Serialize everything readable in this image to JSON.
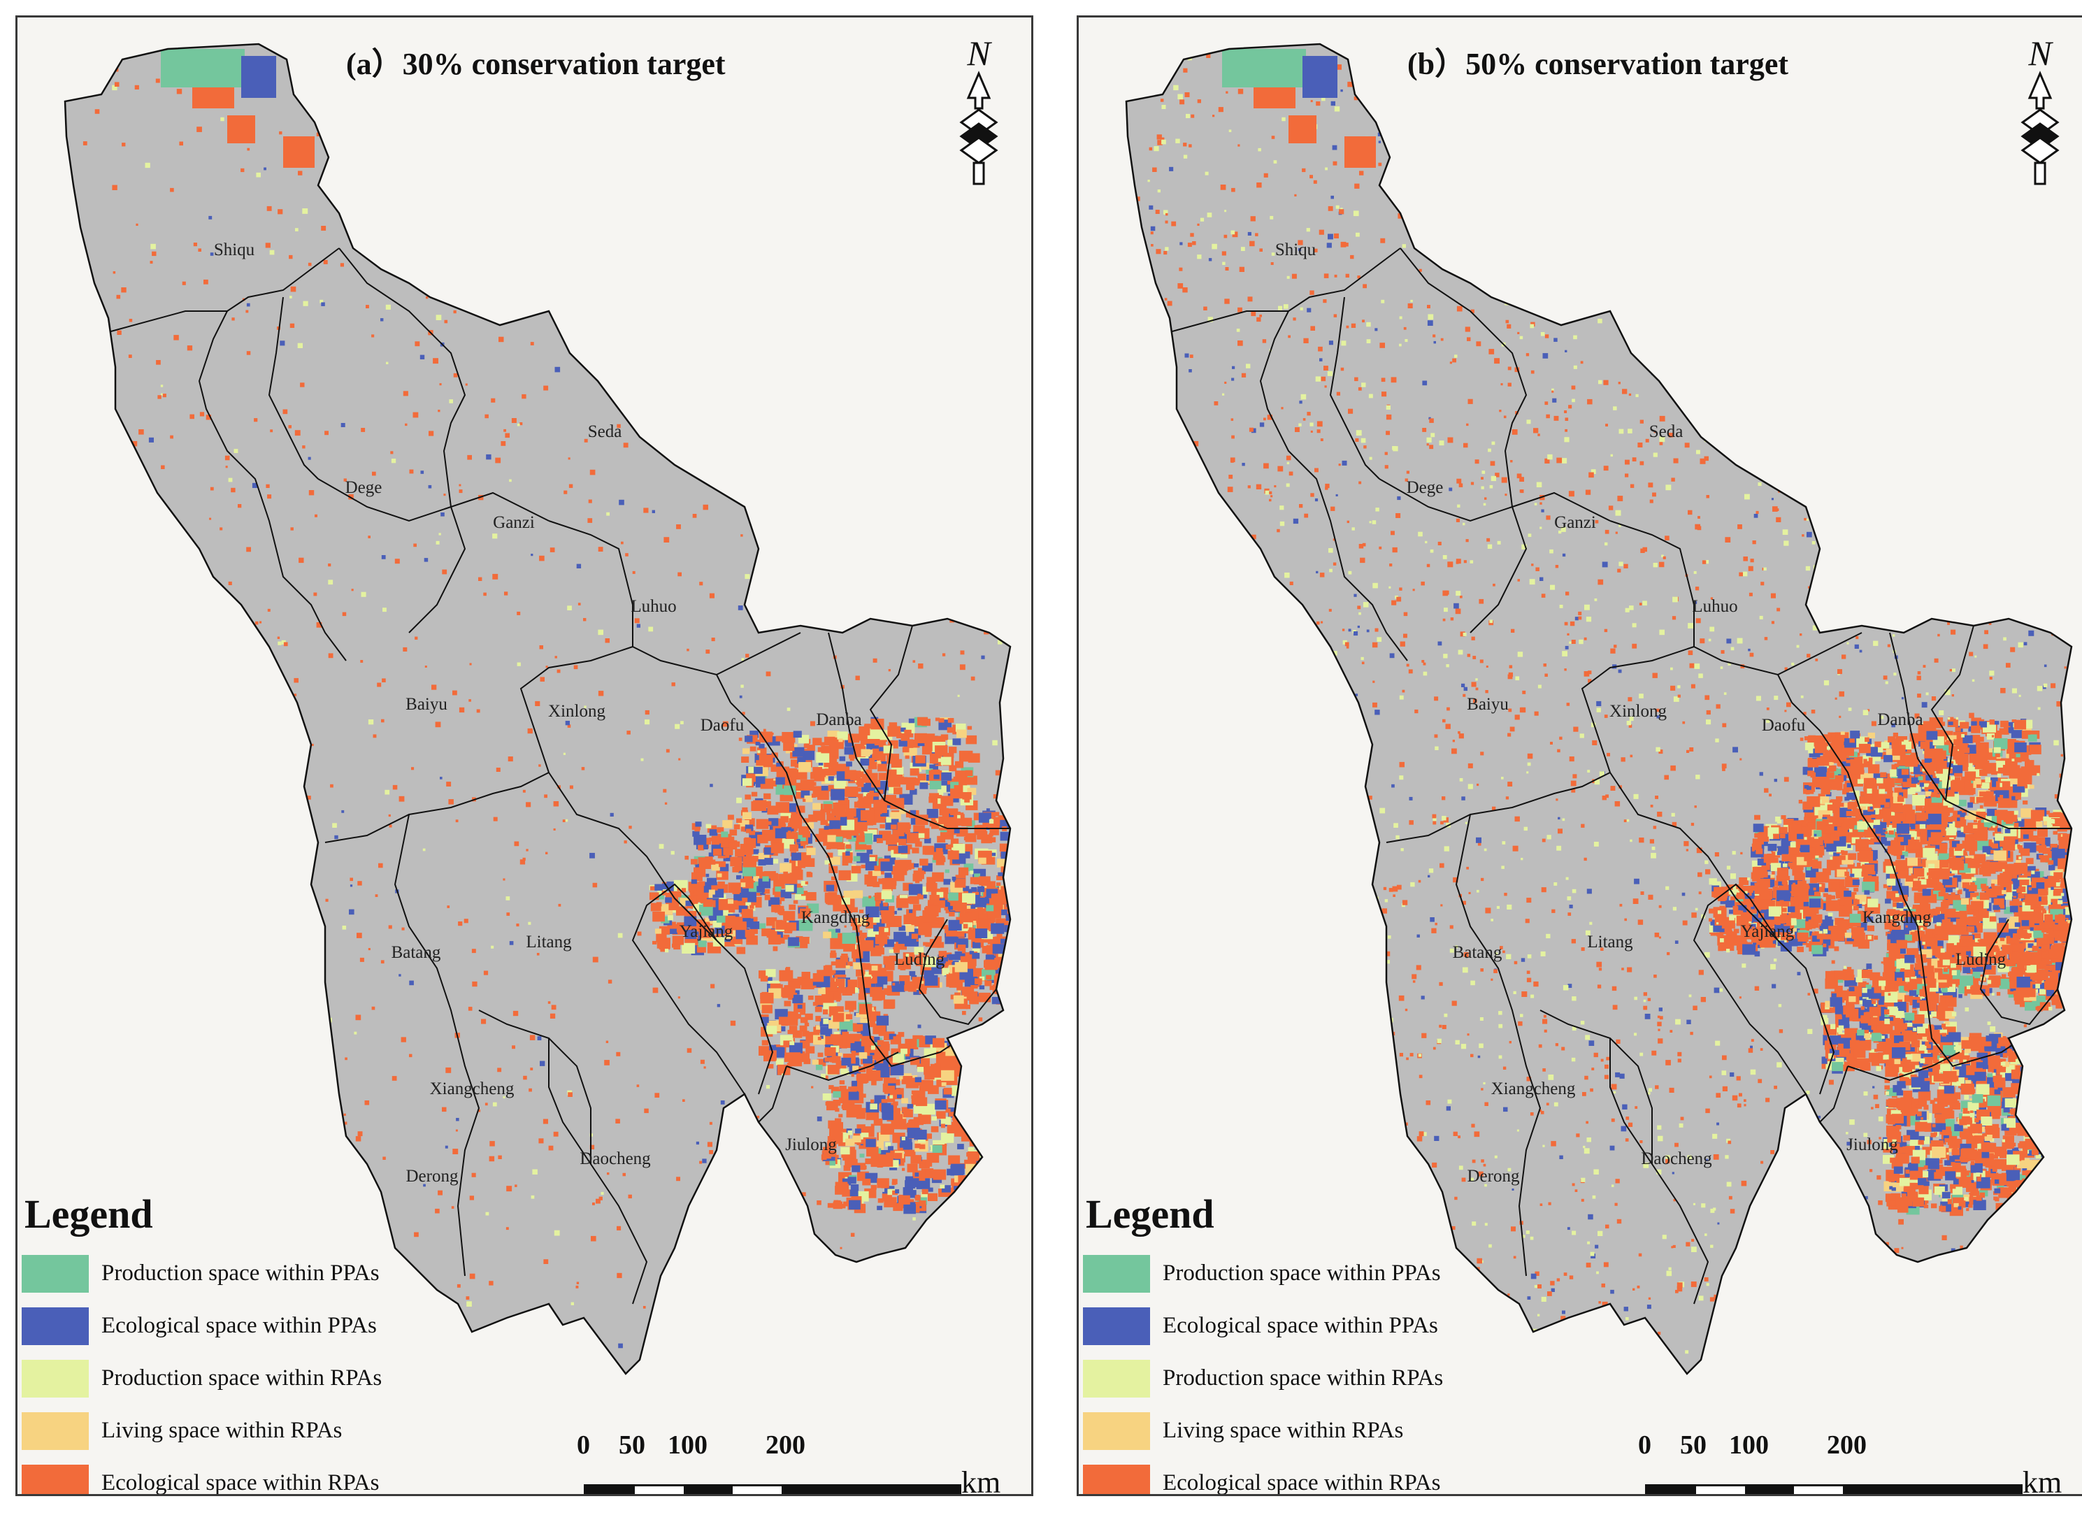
{
  "panels": [
    {
      "id": "a",
      "title": "(a）30% conservation target",
      "counties": [
        "Shiqu",
        "Seda",
        "Dege",
        "Ganzi",
        "Luhuo",
        "Baiyu",
        "Xinlong",
        "Daofu",
        "Danba",
        "Litang",
        "Batang",
        "Yajiang",
        "Kangding",
        "Luding",
        "Xiangcheng",
        "Daocheng",
        "Jiulong",
        "Derong"
      ]
    },
    {
      "id": "b",
      "title": "(b）50% conservation target",
      "counties": [
        "Shiqu",
        "Seda",
        "Dege",
        "Ganzi",
        "Luhuo",
        "Baiyu",
        "Xinlong",
        "Daofu",
        "Danba",
        "Litang",
        "Batang",
        "Yajiang",
        "Kangding",
        "Luding",
        "Xiangcheng",
        "Daocheng",
        "Jiulong",
        "Derong"
      ]
    }
  ],
  "legend": {
    "title": "Legend",
    "items": [
      {
        "label": "Production space within PPAs",
        "color": "#74c69d"
      },
      {
        "label": "Ecological space within PPAs",
        "color": "#4a5fb8"
      },
      {
        "label": "Production space within RPAs",
        "color": "#e4f2a0"
      },
      {
        "label": "Living space within RPAs",
        "color": "#f7d381"
      },
      {
        "label": "Ecological space within RPAs",
        "color": "#f26b3a"
      }
    ]
  },
  "scale": {
    "ticks": [
      "0",
      "50",
      "100",
      "200"
    ],
    "unit": "km"
  },
  "north": {
    "label": "N",
    "icon": "north-arrow-icon"
  },
  "colors": {
    "background_region": "#bdbdbd",
    "boundary": "#111111"
  }
}
